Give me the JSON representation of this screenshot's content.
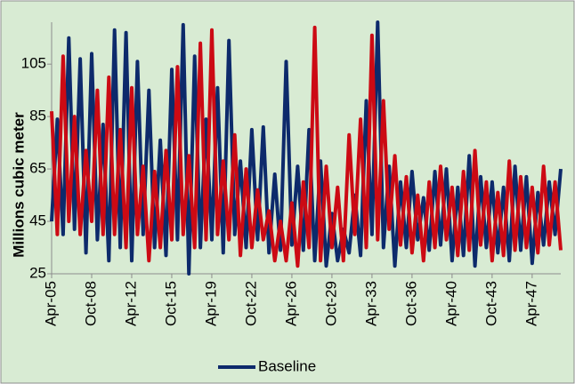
{
  "chart_data": {
    "type": "line",
    "y_label": "Millions cubic meter",
    "categories": [
      "Apr-05",
      null,
      null,
      null,
      null,
      null,
      null,
      "Oct-08",
      null,
      null,
      null,
      null,
      null,
      null,
      "Apr-12",
      null,
      null,
      null,
      null,
      null,
      null,
      "Oct-15",
      null,
      null,
      null,
      null,
      null,
      null,
      "Apr-19",
      null,
      null,
      null,
      null,
      null,
      null,
      "Oct-22",
      null,
      null,
      null,
      null,
      null,
      null,
      "Apr-26",
      null,
      null,
      null,
      null,
      null,
      null,
      "Oct-29",
      null,
      null,
      null,
      null,
      null,
      null,
      "Apr-33",
      null,
      null,
      null,
      null,
      null,
      null,
      "Oct-36",
      null,
      null,
      null,
      null,
      null,
      null,
      "Apr-40",
      null,
      null,
      null,
      null,
      null,
      null,
      "Oct-43",
      null,
      null,
      null,
      null,
      null,
      null,
      "Apr-47",
      null,
      null,
      null,
      null,
      null
    ],
    "series": [
      {
        "name": "Baseline",
        "color": "#0d2a6b",
        "values": [
          45,
          84,
          40,
          115,
          42,
          107,
          33,
          109,
          38,
          82,
          30,
          118,
          35,
          117,
          30,
          106,
          40,
          95,
          35,
          76,
          32,
          103,
          38,
          120,
          25,
          108,
          35,
          84,
          38,
          96,
          33,
          114,
          40,
          68,
          35,
          80,
          38,
          81,
          33,
          63,
          34,
          106,
          36,
          66,
          34,
          80,
          30,
          68,
          28,
          48,
          30,
          42,
          33,
          55,
          32,
          91,
          40,
          121,
          35,
          66,
          28,
          60,
          35,
          64,
          38,
          54,
          34,
          64,
          36,
          65,
          30,
          58,
          32,
          70,
          28,
          62,
          35,
          60,
          33,
          58,
          30,
          66,
          34,
          62,
          29,
          56,
          36,
          60,
          40,
          65
        ]
      },
      {
        "color": "#cc0a14",
        "values": [
          87,
          40,
          108,
          45,
          85,
          40,
          72,
          45,
          95,
          40,
          100,
          40,
          80,
          35,
          96,
          40,
          66,
          30,
          64,
          35,
          72,
          38,
          104,
          40,
          70,
          35,
          113,
          38,
          118,
          40,
          68,
          38,
          78,
          32,
          65,
          35,
          57,
          38,
          49,
          30,
          45,
          30,
          52,
          28,
          60,
          35,
          119,
          30,
          66,
          35,
          58,
          30,
          78,
          40,
          84,
          35,
          116,
          38,
          91,
          42,
          70,
          36,
          62,
          33,
          55,
          30,
          60,
          35,
          66,
          38,
          58,
          32,
          64,
          34,
          72,
          36,
          60,
          30,
          56,
          32,
          68,
          34,
          62,
          35,
          58,
          33,
          66,
          36,
          60,
          34
        ]
      }
    ],
    "ylim": [
      25,
      121
    ],
    "yticks": [
      25,
      45,
      65,
      85,
      105
    ],
    "grid": false,
    "legend": "bottom"
  }
}
